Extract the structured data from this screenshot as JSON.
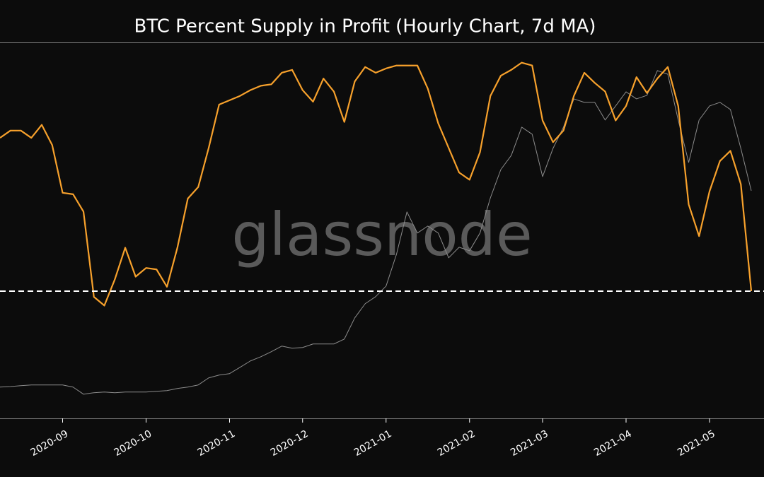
{
  "chart_data": {
    "type": "line",
    "title": "BTC Percent Supply in Profit (Hourly Chart, 7d MA)",
    "watermark": "glassnode",
    "categories": [
      null,
      null,
      null,
      null,
      null,
      null,
      "2020-09",
      null,
      null,
      null,
      null,
      null,
      null,
      null,
      "2020-10",
      null,
      null,
      null,
      null,
      null,
      null,
      null,
      "2020-11",
      null,
      null,
      null,
      null,
      null,
      null,
      "2020-12",
      null,
      null,
      null,
      null,
      null,
      null,
      null,
      "2021-01",
      null,
      null,
      null,
      null,
      null,
      null,
      null,
      "2021-02",
      null,
      null,
      null,
      null,
      null,
      null,
      "2021-03",
      null,
      null,
      null,
      null,
      null,
      null,
      null,
      "2021-04",
      null,
      null,
      null,
      null,
      null,
      null,
      null,
      "2021-05",
      null,
      null,
      null,
      null
    ],
    "series": [
      {
        "color": "#f7a12c",
        "values": [
          95.4,
          95.9,
          95.9,
          95.4,
          96.3,
          94.9,
          91.6,
          91.5,
          90.3,
          84.4,
          83.8,
          85.6,
          87.8,
          85.8,
          86.4,
          86.3,
          85.1,
          87.8,
          91.2,
          92.0,
          94.7,
          97.7,
          98.0,
          98.3,
          98.7,
          99.0,
          99.1,
          99.9,
          100.1,
          98.7,
          97.9,
          99.5,
          98.6,
          96.5,
          99.3,
          100.3,
          99.9,
          100.2,
          100.4,
          100.4,
          100.4,
          98.8,
          96.4,
          94.7,
          93.0,
          92.5,
          94.4,
          98.3,
          99.7,
          100.1,
          100.6,
          100.4,
          96.6,
          95.1,
          95.9,
          98.3,
          99.9,
          99.2,
          98.6,
          96.6,
          97.6,
          99.6,
          98.5,
          99.5,
          100.3,
          97.6,
          90.8,
          88.6,
          91.7,
          93.8,
          94.5,
          92.2,
          84.8
        ]
      },
      {
        "color": "#8c8c8c",
        "axis": "y2",
        "values": [
          11500,
          11600,
          11760,
          11890,
          11890,
          11890,
          11890,
          11500,
          10200,
          10470,
          10600,
          10470,
          10600,
          10600,
          10600,
          10730,
          10860,
          11240,
          11500,
          11890,
          13170,
          13690,
          13950,
          15100,
          16260,
          17030,
          17940,
          18960,
          18580,
          18710,
          19350,
          19350,
          19350,
          20250,
          24110,
          26690,
          27970,
          29900,
          35700,
          43420,
          39560,
          40840,
          39560,
          35050,
          36980,
          36340,
          39560,
          45990,
          51140,
          53710,
          58860,
          57570,
          49850,
          54990,
          58860,
          64010,
          63370,
          63370,
          60150,
          62720,
          65300,
          64010,
          64650,
          69160,
          68510,
          60150,
          52430,
          60150,
          62720,
          63370,
          62080,
          54990,
          47280
        ]
      }
    ],
    "ylim": [
      76,
      102
    ],
    "y2lim": [
      5800,
      74300
    ],
    "threshold": 84.8,
    "threshold_color": "#ffffff"
  }
}
